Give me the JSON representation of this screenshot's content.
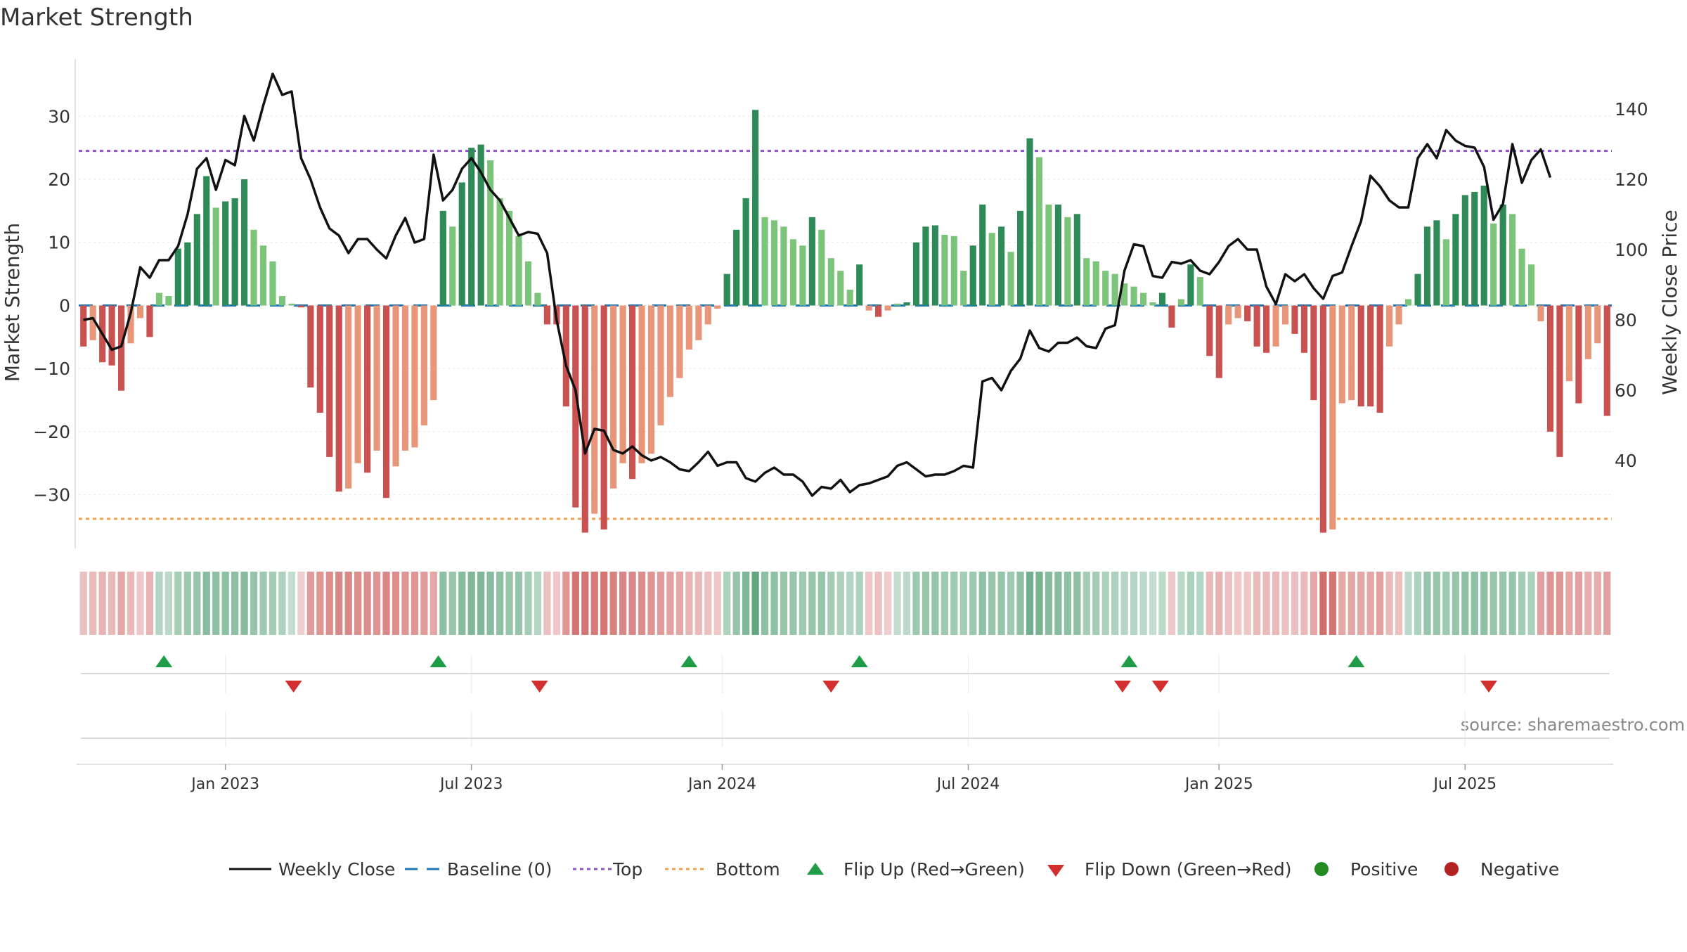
{
  "title": "Market Strength",
  "source_text": "source: sharemaestro.com",
  "colors": {
    "strong_green": "#2e8b57",
    "light_green": "#7cc47a",
    "strong_red": "#c9514f",
    "light_red": "#e8967a",
    "close_line": "#111111",
    "baseline": "#1f77b4",
    "top": "#8e55c9",
    "bottom": "#f0a04b",
    "flip_up": "#1e9c46",
    "flip_down": "#d32f2f",
    "positive": "#228b22",
    "negative": "#b22222"
  },
  "chart_data": {
    "type": "bar",
    "title": "Market Strength",
    "ylabel_left": "Market Strength",
    "ylabel_right": "Weekly Close Price",
    "y_left_range": [
      -38.5,
      39.5
    ],
    "y_left_ticks": [
      {
        "v": 30,
        "t": "30"
      },
      {
        "v": 20,
        "t": "20"
      },
      {
        "v": 10,
        "t": "10"
      },
      {
        "v": 0,
        "t": "0"
      },
      {
        "v": -10,
        "t": "−10"
      },
      {
        "v": -20,
        "t": "−20"
      },
      {
        "v": -30,
        "t": "−30"
      }
    ],
    "y_right_range": [
      15,
      155
    ],
    "y_right_ticks": [
      40,
      60,
      80,
      100,
      120,
      140
    ],
    "x_tick_labels": [
      "Jan 2023",
      "Jul 2023",
      "Jan 2024",
      "Jul 2024",
      "Jan 2025",
      "Jul 2025"
    ],
    "x_tick_weeks": [
      15,
      41,
      67.5,
      93.5,
      120,
      146
    ],
    "top_level": 24.5,
    "bottom_level": -33.8,
    "baseline": 0,
    "grid": true,
    "legend_position": "bottom-center",
    "strength": [
      -6.5,
      -5.5,
      -9,
      -9.5,
      -13.5,
      -6,
      -2,
      -5,
      2,
      1.5,
      9,
      10,
      14.5,
      20.5,
      15.5,
      16.5,
      17,
      20,
      12,
      9.5,
      7,
      1.5,
      0.3,
      -0.3,
      -13,
      -17,
      -24,
      -29.5,
      -29,
      -25,
      -26.5,
      -23,
      -30.5,
      -25.5,
      -23,
      -22.5,
      -19,
      -15,
      15,
      12.5,
      19.5,
      25,
      25.5,
      23,
      17,
      15,
      11,
      7,
      2,
      -3,
      -3,
      -16,
      -32,
      -36,
      -33,
      -35.5,
      -29,
      -25,
      -27.5,
      -25,
      -23.5,
      -19,
      -14.5,
      -11.5,
      -7,
      -5.5,
      -3,
      -0.5,
      5,
      12,
      17,
      31,
      14,
      13.5,
      12.5,
      10.5,
      9.5,
      14,
      12,
      7.5,
      5.5,
      2.5,
      6.5,
      -0.8,
      -1.8,
      -0.8,
      0.3,
      0.5,
      10,
      12.5,
      12.7,
      11.2,
      11,
      5.5,
      9.5,
      16,
      11.5,
      12.5,
      8.5,
      15,
      26.5,
      23.5,
      16,
      16,
      14,
      14.5,
      7.5,
      7,
      5.5,
      5,
      3.5,
      3,
      2,
      0.5,
      2,
      -3.5,
      1,
      6.5,
      4.5,
      -8,
      -11.5,
      -3,
      -2,
      -2.5,
      -6.5,
      -7.5,
      -6.5,
      -3,
      -4.5,
      -7.5,
      -15,
      -36,
      -35.5,
      -15.5,
      -15,
      -16,
      -16,
      -17,
      -6.5,
      -3,
      1,
      5,
      12.5,
      13.5,
      10.5,
      14.5,
      17.5,
      18,
      19,
      13,
      16,
      14.5,
      9,
      6.5,
      -2.5,
      -20,
      -24,
      -12,
      -15.5,
      -8.5,
      -6,
      -17.5
    ],
    "weekly_close": [
      80,
      80.5,
      76,
      71.5,
      72.5,
      82,
      95,
      92,
      97,
      97,
      101,
      110,
      123,
      126,
      117,
      125.5,
      124,
      138,
      131,
      141,
      150,
      144,
      145,
      126,
      120,
      112,
      106,
      104,
      99,
      103,
      103,
      100,
      97.5,
      104,
      109,
      102,
      103,
      127,
      114,
      117,
      123,
      126,
      122,
      117,
      114,
      109,
      104,
      105,
      104.5,
      99,
      80,
      67,
      60,
      42,
      49,
      48.5,
      43,
      42,
      44,
      41.5,
      40,
      41,
      39.5,
      37.5,
      37,
      39.5,
      42.5,
      38.5,
      39.5,
      39.5,
      35,
      34,
      36.5,
      38,
      36,
      36,
      34,
      30,
      32.5,
      32,
      34.5,
      31,
      33,
      33.5,
      34.5,
      35.5,
      38.5,
      39.5,
      37.5,
      35.5,
      36,
      36,
      37,
      38.5,
      38,
      62.5,
      63.5,
      60,
      65.5,
      69,
      77,
      72,
      71,
      73.5,
      73.5,
      75,
      72.5,
      72,
      77.5,
      78.5,
      94,
      101.5,
      101,
      92.5,
      92,
      96.5,
      96,
      97,
      94,
      93,
      96.5,
      101,
      103,
      100,
      100,
      89.5,
      84.5,
      93,
      91,
      93,
      89,
      86,
      92.5,
      93.5,
      101,
      108,
      121,
      118,
      114,
      112,
      112,
      126,
      130,
      126,
      134,
      131,
      129.5,
      129,
      123.5,
      108.5,
      113,
      130,
      119,
      125.5,
      128.5,
      120.5
    ],
    "intensity_band": [
      -0.25,
      -0.3,
      -0.35,
      -0.3,
      -0.45,
      -0.3,
      -0.2,
      -0.35,
      0.25,
      0.2,
      0.35,
      0.4,
      0.45,
      0.55,
      0.5,
      0.5,
      0.5,
      0.55,
      0.45,
      0.4,
      0.35,
      0.3,
      0.15,
      -0.15,
      -0.55,
      -0.6,
      -0.65,
      -0.7,
      -0.7,
      -0.65,
      -0.65,
      -0.6,
      -0.7,
      -0.65,
      -0.6,
      -0.6,
      -0.55,
      -0.45,
      0.5,
      0.45,
      0.55,
      0.6,
      0.6,
      0.55,
      0.5,
      0.45,
      0.45,
      0.35,
      0.25,
      -0.25,
      -0.2,
      -0.6,
      -0.85,
      -0.85,
      -0.8,
      -0.85,
      -0.75,
      -0.7,
      -0.7,
      -0.65,
      -0.6,
      -0.55,
      -0.5,
      -0.45,
      -0.35,
      -0.3,
      -0.25,
      -0.2,
      0.3,
      0.45,
      0.6,
      0.8,
      0.5,
      0.5,
      0.45,
      0.45,
      0.4,
      0.45,
      0.45,
      0.35,
      0.3,
      0.25,
      0.3,
      -0.2,
      -0.25,
      -0.15,
      0.15,
      0.2,
      0.4,
      0.45,
      0.45,
      0.4,
      0.4,
      0.35,
      0.4,
      0.5,
      0.45,
      0.45,
      0.4,
      0.5,
      0.7,
      0.65,
      0.55,
      0.55,
      0.5,
      0.5,
      0.35,
      0.35,
      0.3,
      0.3,
      0.25,
      0.25,
      0.2,
      0.15,
      0.2,
      -0.2,
      0.2,
      0.3,
      0.25,
      -0.3,
      -0.35,
      -0.25,
      -0.2,
      -0.2,
      -0.3,
      -0.3,
      -0.3,
      -0.25,
      -0.25,
      -0.3,
      -0.45,
      -0.9,
      -0.85,
      -0.45,
      -0.45,
      -0.45,
      -0.45,
      -0.5,
      -0.3,
      -0.25,
      0.2,
      0.3,
      0.45,
      0.45,
      0.4,
      0.45,
      0.5,
      0.5,
      0.5,
      0.45,
      0.45,
      0.45,
      0.35,
      0.3,
      -0.5,
      -0.6,
      -0.6,
      -0.45,
      -0.5,
      -0.4,
      -0.4,
      -0.5
    ],
    "flips_up_weeks": [
      8.5,
      37.5,
      64,
      82,
      110.5,
      134.5
    ],
    "flips_down_weeks": [
      22.2,
      48.2,
      79,
      109.8,
      113.8,
      148.5
    ]
  },
  "legend": [
    {
      "key": "close",
      "label": "Weekly Close"
    },
    {
      "key": "baseline",
      "label": "Baseline (0)"
    },
    {
      "key": "top",
      "label": "Top"
    },
    {
      "key": "bottom",
      "label": "Bottom"
    },
    {
      "key": "flip_up",
      "label": "Flip Up (Red→Green)"
    },
    {
      "key": "flip_down",
      "label": "Flip Down (Green→Red)"
    },
    {
      "key": "positive",
      "label": "Positive"
    },
    {
      "key": "negative",
      "label": "Negative"
    }
  ]
}
